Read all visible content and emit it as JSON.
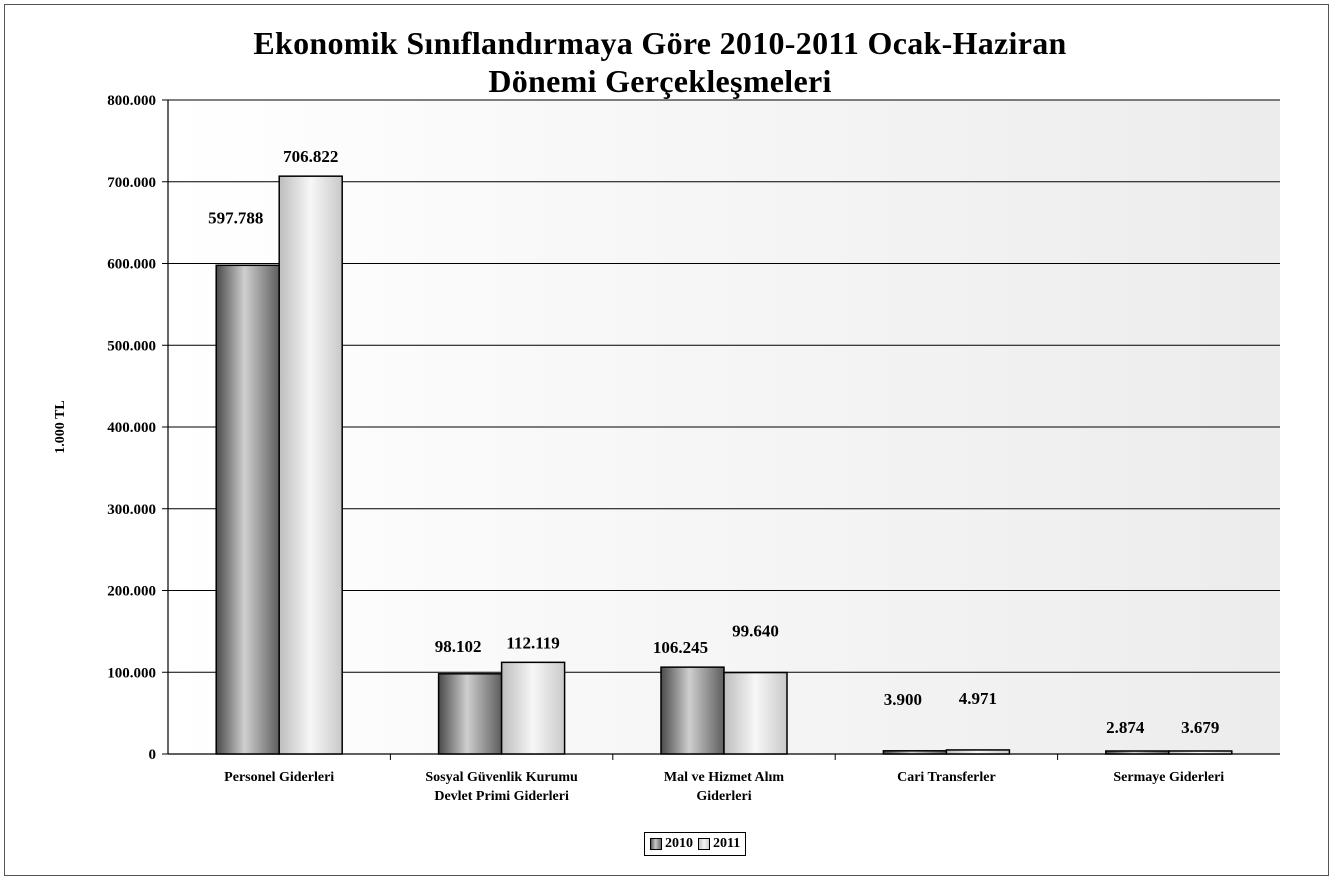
{
  "chart_data": {
    "type": "bar",
    "title_line1": "Ekonomik Sınıflandırmaya Göre 2010-2011 Ocak-Haziran",
    "title_line2": "Dönemi Gerçekleşmeleri",
    "ylabel": "1.000 TL",
    "xlabel": "",
    "ylim": [
      0,
      800000
    ],
    "yticks": [
      0,
      100000,
      200000,
      300000,
      400000,
      500000,
      600000,
      700000,
      800000
    ],
    "ytick_labels": [
      "0",
      "100.000",
      "200.000",
      "300.000",
      "400.000",
      "500.000",
      "600.000",
      "700.000",
      "800.000"
    ],
    "grid": true,
    "legend_position": "bottom",
    "categories": [
      [
        "Personel Giderleri"
      ],
      [
        "Sosyal Güvenlik Kurumu",
        "Devlet Primi Giderleri"
      ],
      [
        "Mal ve Hizmet Alım",
        "Giderleri"
      ],
      [
        "Cari Transferler"
      ],
      [
        "Sermaye Giderleri"
      ]
    ],
    "series": [
      {
        "name": "2010",
        "values": [
          597788,
          98102,
          106245,
          3900,
          2874
        ],
        "labels": [
          "597.788",
          "98.102",
          "106.245",
          "3.900",
          "2.874"
        ],
        "color": "#8c8c8c"
      },
      {
        "name": "2011",
        "values": [
          706822,
          112119,
          99640,
          4971,
          3679
        ],
        "labels": [
          "706.822",
          "112.119",
          "99.640",
          "4.971",
          "3.679"
        ],
        "color": "#e0e0e0"
      }
    ]
  }
}
